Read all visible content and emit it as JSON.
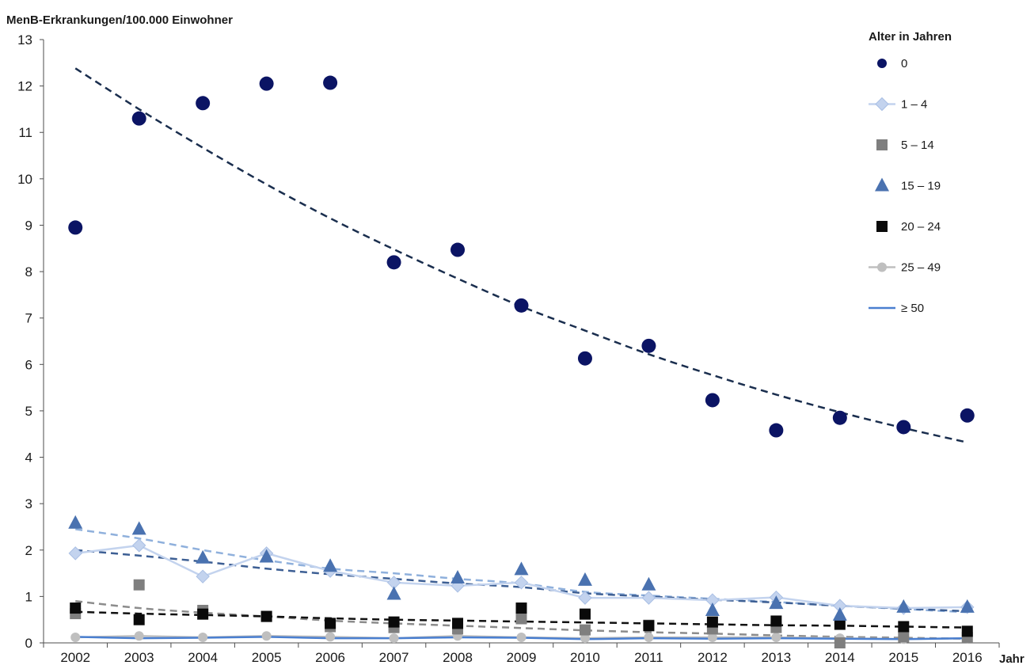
{
  "chart_data": {
    "type": "scatter",
    "ylabel": "MenB-Erkrankungen/100.000 Einwohner",
    "xlabel": "Jahr",
    "x": [
      2002,
      2003,
      2004,
      2005,
      2006,
      2007,
      2008,
      2009,
      2010,
      2011,
      2012,
      2013,
      2014,
      2015,
      2016
    ],
    "ylim": [
      0,
      13
    ],
    "yticks": [
      "0",
      "1",
      "2",
      "3",
      "4",
      "5",
      "6",
      "7",
      "8",
      "9",
      "10",
      "11",
      "12",
      "13"
    ],
    "xticks": [
      "2002",
      "2003",
      "2004",
      "2005",
      "2006",
      "2007",
      "2008",
      "2009",
      "2010",
      "2011",
      "2012",
      "2013",
      "2014",
      "2015",
      "2016"
    ],
    "grid": false,
    "legend": {
      "title": "Alter in Jahren",
      "placement": "right"
    },
    "series": [
      {
        "name": "0",
        "marker": "circle",
        "line": false,
        "color": "#0b1464",
        "values": [
          8.95,
          11.3,
          11.63,
          12.05,
          12.07,
          8.2,
          8.47,
          7.27,
          6.13,
          6.4,
          5.23,
          4.58,
          4.85,
          4.65,
          4.9
        ],
        "trend": [
          12.38,
          11.5,
          10.67,
          9.88,
          9.15,
          8.48,
          7.85,
          7.25,
          6.73,
          6.22,
          5.77,
          5.35,
          4.97,
          4.63,
          4.32
        ],
        "trend_color": "#1a2e4e"
      },
      {
        "name": "1 – 4",
        "marker": "diamond",
        "line": true,
        "color": "#c3d3ee",
        "values": [
          1.93,
          2.1,
          1.43,
          1.93,
          1.55,
          1.3,
          1.23,
          1.3,
          0.97,
          0.97,
          0.92,
          0.98,
          0.8,
          0.75,
          0.77
        ],
        "trend": [
          2.45,
          2.25,
          2.0,
          1.78,
          1.6,
          1.5,
          1.38,
          1.28,
          1.1,
          1.02,
          0.95,
          0.88,
          0.8,
          0.73,
          0.66
        ],
        "trend_color": "#8fb0dc"
      },
      {
        "name": "5 – 14",
        "marker": "square",
        "line": false,
        "color": "#7f7f7f",
        "values": [
          0.63,
          1.25,
          0.7,
          0.57,
          0.35,
          0.33,
          0.3,
          0.52,
          0.28,
          0.38,
          0.3,
          0.33,
          0.0,
          0.13,
          0.12
        ],
        "trend": [
          0.9,
          0.75,
          0.65,
          0.57,
          0.48,
          0.42,
          0.37,
          0.32,
          0.27,
          0.23,
          0.2,
          0.16,
          0.13,
          0.11,
          0.09
        ],
        "trend_color": "#8c8c8c"
      },
      {
        "name": "15 – 19",
        "marker": "triangle",
        "line": false,
        "color": "#4a72b0",
        "values": [
          2.58,
          2.45,
          1.83,
          1.85,
          1.65,
          1.05,
          1.4,
          1.58,
          1.35,
          1.25,
          0.7,
          0.85,
          0.6,
          0.77,
          0.77
        ],
        "trend": [
          2.0,
          1.88,
          1.75,
          1.6,
          1.48,
          1.38,
          1.28,
          1.2,
          1.07,
          1.0,
          0.93,
          0.87,
          0.8,
          0.74,
          0.68
        ],
        "trend_color": "#3d5f94"
      },
      {
        "name": "20 – 24",
        "marker": "square",
        "line": false,
        "color": "#0a0a0a",
        "values": [
          0.75,
          0.5,
          0.62,
          0.57,
          0.42,
          0.45,
          0.42,
          0.75,
          0.62,
          0.37,
          0.45,
          0.47,
          0.4,
          0.35,
          0.25
        ],
        "trend": [
          0.67,
          0.63,
          0.6,
          0.57,
          0.53,
          0.5,
          0.48,
          0.46,
          0.44,
          0.42,
          0.4,
          0.38,
          0.37,
          0.35,
          0.33
        ],
        "trend_color": "#111111"
      },
      {
        "name": "25 – 49",
        "marker": "circle-small",
        "line": true,
        "color": "#bfbfbf",
        "values": [
          0.12,
          0.15,
          0.12,
          0.15,
          0.13,
          0.1,
          0.15,
          0.12,
          0.1,
          0.12,
          0.12,
          0.12,
          0.1,
          0.08,
          0.1
        ],
        "trend": [],
        "trend_color": ""
      },
      {
        "name": "≥ 50",
        "marker": "none",
        "line": true,
        "color": "#4a7fd0",
        "values": [
          0.13,
          0.1,
          0.11,
          0.13,
          0.1,
          0.1,
          0.12,
          0.11,
          0.08,
          0.1,
          0.09,
          0.1,
          0.09,
          0.08,
          0.1
        ],
        "trend": [],
        "trend_color": ""
      }
    ]
  }
}
